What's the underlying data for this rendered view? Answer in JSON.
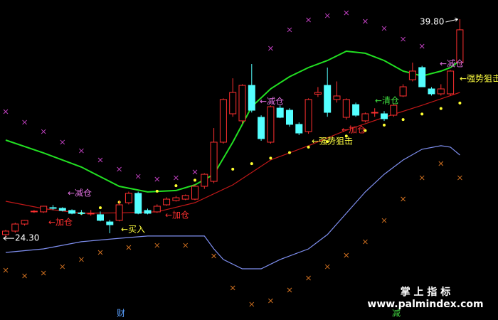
{
  "chart_data": {
    "type": "candlestick",
    "ylim": [
      18.52,
      41.16
    ],
    "open": [
      24.56,
      24.81,
      25.31,
      26.17,
      26.17,
      26.47,
      26.42,
      26.27,
      26.1,
      26.07,
      25.97,
      25.46,
      25.57,
      26.82,
      27.48,
      26.27,
      26.17,
      26.67,
      26.97,
      27.07,
      27.07,
      27.98,
      28.33,
      31.1,
      33.11,
      32.61,
      35.12,
      32.86,
      31.1,
      33.51,
      33.36,
      32.36,
      31.85,
      34.5,
      35.12,
      34.12,
      32.86,
      33.76,
      32.61,
      33.21,
      33.11,
      33.01,
      34.37,
      35.52,
      36.38,
      34.87,
      34.52,
      34.52,
      36.73
    ],
    "high": [
      24.9,
      25.4,
      25.6,
      26.3,
      26.6,
      26.65,
      26.5,
      26.35,
      26.3,
      26.3,
      26.2,
      25.6,
      27.0,
      27.6,
      27.6,
      26.4,
      26.7,
      27.2,
      27.3,
      27.4,
      28.1,
      28.9,
      32.1,
      34.2,
      35.62,
      35.2,
      36.63,
      33.0,
      33.7,
      33.7,
      33.5,
      32.5,
      34.2,
      35.0,
      36.38,
      35.4,
      34.2,
      33.9,
      33.2,
      33.5,
      33.3,
      33.8,
      35.2,
      36.73,
      36.5,
      35.0,
      35.2,
      36.2,
      39.8
    ],
    "low": [
      24.3,
      24.7,
      25.2,
      26.1,
      26.1,
      26.3,
      26.2,
      26.0,
      25.95,
      25.9,
      25.5,
      24.66,
      25.5,
      26.7,
      26.0,
      26.0,
      26.1,
      26.6,
      26.9,
      27.0,
      27.0,
      27.8,
      28.2,
      31.0,
      32.9,
      32.4,
      33.2,
      31.2,
      31.0,
      32.8,
      32.2,
      31.6,
      31.7,
      34.3,
      32.9,
      33.9,
      32.7,
      32.9,
      32.5,
      32.9,
      32.6,
      32.9,
      34.3,
      35.4,
      35.0,
      34.4,
      34.4,
      34.4,
      36.6
    ],
    "close": [
      24.81,
      25.31,
      25.57,
      26.22,
      26.57,
      26.42,
      26.27,
      26.07,
      26.07,
      26.07,
      25.57,
      25.26,
      26.67,
      27.48,
      26.07,
      26.07,
      26.57,
      27.07,
      27.17,
      27.33,
      27.98,
      28.83,
      31.1,
      34.12,
      34.62,
      35.12,
      33.36,
      31.35,
      33.61,
      32.86,
      32.36,
      31.75,
      34.12,
      34.62,
      33.21,
      34.37,
      34.12,
      33.01,
      33.11,
      33.21,
      32.76,
      33.71,
      35.02,
      36.13,
      35.02,
      34.52,
      34.87,
      36.13,
      39.05
    ],
    "up_color": "#ff3030",
    "down_color": "#54ffff",
    "series": [
      {
        "style": "line",
        "color": "#22e022",
        "x": [
          0,
          4,
          8,
          12,
          15,
          18,
          20,
          22,
          24,
          26,
          28,
          30,
          32,
          34,
          36,
          38,
          40,
          42,
          44,
          46,
          47,
          48
        ],
        "values": [
          31.25,
          30.34,
          29.34,
          27.98,
          27.58,
          27.68,
          28.08,
          28.83,
          31.1,
          33.61,
          34.87,
          35.73,
          36.38,
          36.88,
          37.54,
          37.39,
          36.88,
          36.13,
          35.78,
          36.13,
          36.38,
          36.88
        ]
      },
      {
        "style": "line",
        "color": "#c01818",
        "x": [
          0,
          4,
          8,
          12,
          16,
          20,
          24,
          28,
          32,
          36,
          40,
          44,
          48
        ],
        "values": [
          26.92,
          26.4,
          26.07,
          26.1,
          26.17,
          26.82,
          28.08,
          29.84,
          30.85,
          31.95,
          32.86,
          33.71,
          34.62
        ]
      },
      {
        "style": "line",
        "color": "#7f8ff0",
        "x": [
          0,
          4,
          8,
          12,
          15,
          21,
          22,
          23,
          25,
          27,
          29,
          32,
          34,
          36,
          38,
          40,
          42,
          44,
          46,
          47,
          48
        ],
        "values": [
          23.3,
          23.55,
          24.06,
          24.3,
          24.46,
          24.46,
          23.55,
          22.8,
          22.14,
          22.14,
          22.8,
          23.55,
          24.56,
          26.07,
          27.58,
          28.83,
          29.84,
          30.6,
          30.85,
          30.75,
          30.19
        ]
      },
      {
        "style": "dot",
        "color": "#ffff30",
        "x": [
          8,
          10,
          12,
          14,
          16,
          18,
          20,
          22,
          24,
          26,
          28,
          30,
          32,
          34,
          36,
          38,
          40,
          42,
          44,
          46,
          48
        ],
        "values": [
          26.07,
          26.46,
          26.85,
          27.24,
          27.63,
          28.02,
          28.41,
          28.8,
          29.19,
          29.58,
          29.97,
          30.36,
          30.75,
          31.14,
          31.53,
          31.92,
          32.31,
          32.7,
          33.09,
          33.48,
          33.87
        ]
      },
      {
        "style": "cross",
        "color": "#c040c0",
        "x": [
          0,
          2,
          4,
          6,
          8,
          10,
          12,
          14,
          16,
          18,
          20,
          28,
          30,
          32,
          34,
          36,
          38,
          40,
          42,
          44
        ],
        "values": [
          33.26,
          32.51,
          31.85,
          31.1,
          30.49,
          29.84,
          29.19,
          28.68,
          28.48,
          28.58,
          28.99,
          37.74,
          39.05,
          39.75,
          40.05,
          40.25,
          39.65,
          39.15,
          38.39,
          37.89
        ]
      },
      {
        "style": "cross",
        "color": "#d07020",
        "x": [
          0,
          2,
          4,
          6,
          8,
          10,
          13,
          16,
          19,
          22,
          24,
          26,
          28,
          30,
          32,
          34,
          36,
          38,
          40,
          42,
          44,
          46,
          48
        ],
        "values": [
          22.04,
          21.64,
          21.84,
          22.29,
          22.8,
          23.3,
          23.65,
          23.8,
          23.8,
          23.05,
          20.79,
          19.63,
          19.88,
          20.64,
          21.49,
          22.29,
          23.1,
          24.05,
          25.56,
          27.08,
          28.58,
          29.59,
          28.58
        ]
      }
    ],
    "extremes": [
      {
        "value": 24.3,
        "label": "24.30"
      },
      {
        "value": 39.8,
        "label": "39.80"
      }
    ],
    "annotations": [
      {
        "text": "←减仓",
        "color": "#e070e0"
      },
      {
        "text": "←减仓",
        "color": "#e070e0"
      },
      {
        "text": "←减仓",
        "color": "#e070e0"
      },
      {
        "text": "←加仓",
        "color": "#ff3030"
      },
      {
        "text": "←加仓",
        "color": "#ff3030"
      },
      {
        "text": "←加仓",
        "color": "#ff3030"
      },
      {
        "text": "←买入",
        "color": "#ffff40"
      },
      {
        "text": "←强势狙击",
        "color": "#ffff40"
      },
      {
        "text": "←强势狙击",
        "color": "#ffff40"
      },
      {
        "text": "←清仓",
        "color": "#40e040"
      }
    ],
    "footer_marks": [
      {
        "text": "财",
        "color": "#5aa0ff"
      },
      {
        "text": "减",
        "color": "#40d040"
      }
    ]
  },
  "watermark": {
    "title": "掌 上 指 标",
    "url": "www.palmindex.com"
  }
}
